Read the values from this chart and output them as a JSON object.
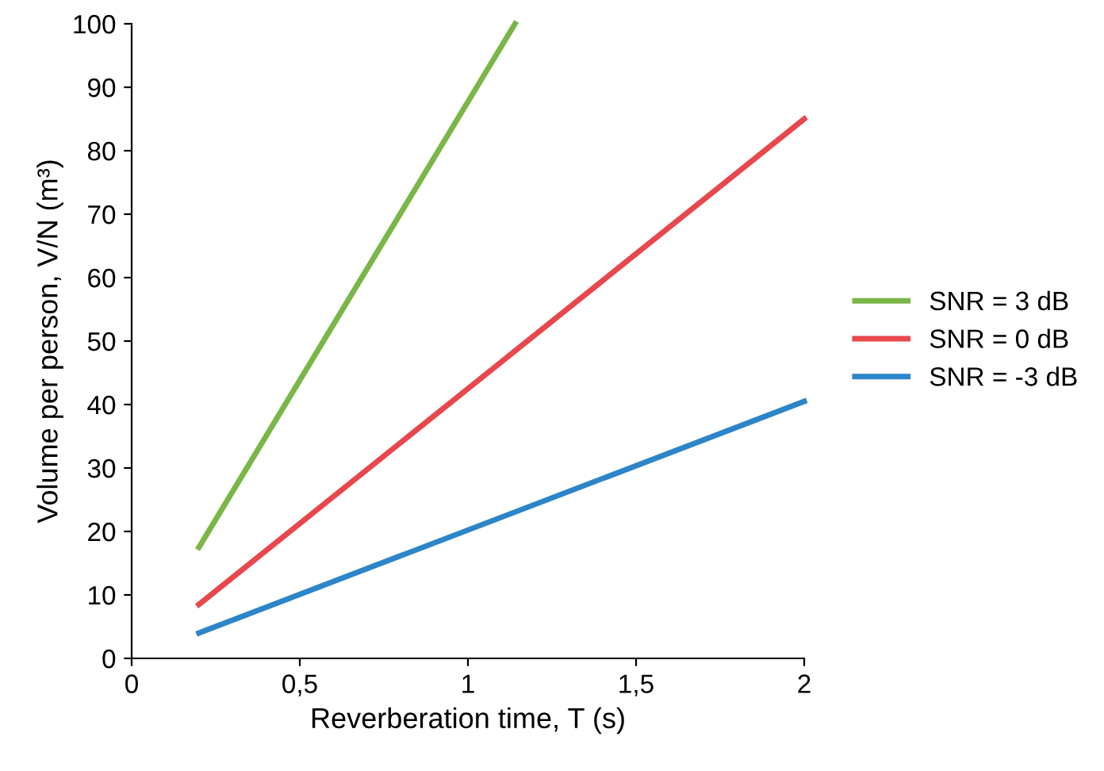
{
  "chart_data": {
    "type": "line",
    "xlabel": "Reverberation time, T (s)",
    "ylabel": "Volume per person, V/N (m³)",
    "xlim": [
      0,
      2
    ],
    "xticks": [
      0,
      {
        "value": 0.5,
        "label": "0,5"
      },
      1,
      {
        "value": 1.5,
        "label": "1,5"
      },
      2
    ],
    "ylim": [
      0,
      100
    ],
    "yticks": [
      0,
      10,
      20,
      30,
      40,
      50,
      60,
      70,
      80,
      90,
      100
    ],
    "grid": false,
    "legend": "right",
    "marker": "none",
    "line_style": "solid",
    "series": [
      {
        "name": "SNR = 3 dB",
        "color": "#7ab648",
        "x": [
          0.2,
          1.14
        ],
        "values": [
          17.5,
          100
        ]
      },
      {
        "name": "SNR = 0 dB",
        "color": "#e8474c",
        "x": [
          0.2,
          2
        ],
        "values": [
          8.5,
          85
        ]
      },
      {
        "name": "SNR = -3 dB",
        "color": "#2c85c8",
        "x": [
          0.2,
          2
        ],
        "values": [
          4,
          40.5
        ]
      }
    ]
  }
}
